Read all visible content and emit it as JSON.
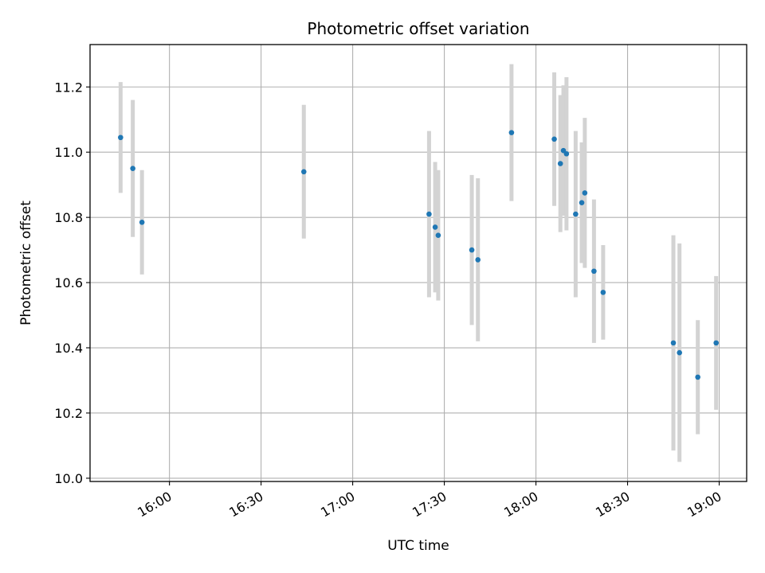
{
  "chart_data": {
    "type": "scatter",
    "title": "Photometric offset variation",
    "xlabel": "UTC time",
    "ylabel": "Photometric offset",
    "x_axis_kind": "time",
    "xlim": [
      "15:34",
      "19:09"
    ],
    "ylim": [
      9.99,
      11.33
    ],
    "x_ticks": [
      "16:00",
      "16:30",
      "17:00",
      "17:30",
      "18:00",
      "18:30",
      "19:00"
    ],
    "y_ticks": [
      "10.0",
      "10.2",
      "10.4",
      "10.6",
      "10.8",
      "11.0",
      "11.2"
    ],
    "x_tick_rotation_deg": 30,
    "grid": true,
    "marker_color": "#1f77b4",
    "errorbar_color": "#d3d3d3",
    "points": [
      {
        "x": "15:44",
        "y": 11.045,
        "err": 0.17
      },
      {
        "x": "15:48",
        "y": 10.95,
        "err": 0.21
      },
      {
        "x": "15:51",
        "y": 10.785,
        "err": 0.16
      },
      {
        "x": "16:44",
        "y": 10.94,
        "err": 0.205
      },
      {
        "x": "17:25",
        "y": 10.81,
        "err": 0.255
      },
      {
        "x": "17:27",
        "y": 10.77,
        "err": 0.2
      },
      {
        "x": "17:28",
        "y": 10.745,
        "err": 0.2
      },
      {
        "x": "17:39",
        "y": 10.7,
        "err": 0.23
      },
      {
        "x": "17:41",
        "y": 10.67,
        "err": 0.25
      },
      {
        "x": "17:52",
        "y": 11.06,
        "err": 0.21
      },
      {
        "x": "18:06",
        "y": 11.04,
        "err": 0.205
      },
      {
        "x": "18:08",
        "y": 10.965,
        "err": 0.21
      },
      {
        "x": "18:09",
        "y": 11.005,
        "err": 0.2
      },
      {
        "x": "18:10",
        "y": 10.995,
        "err": 0.235
      },
      {
        "x": "18:13",
        "y": 10.81,
        "err": 0.255
      },
      {
        "x": "18:15",
        "y": 10.845,
        "err": 0.185
      },
      {
        "x": "18:16",
        "y": 10.875,
        "err": 0.23
      },
      {
        "x": "18:19",
        "y": 10.635,
        "err": 0.22
      },
      {
        "x": "18:22",
        "y": 10.57,
        "err": 0.145
      },
      {
        "x": "18:45",
        "y": 10.415,
        "err": 0.33
      },
      {
        "x": "18:47",
        "y": 10.385,
        "err": 0.335
      },
      {
        "x": "18:53",
        "y": 10.31,
        "err": 0.175
      },
      {
        "x": "18:59",
        "y": 10.415,
        "err": 0.205
      }
    ]
  }
}
